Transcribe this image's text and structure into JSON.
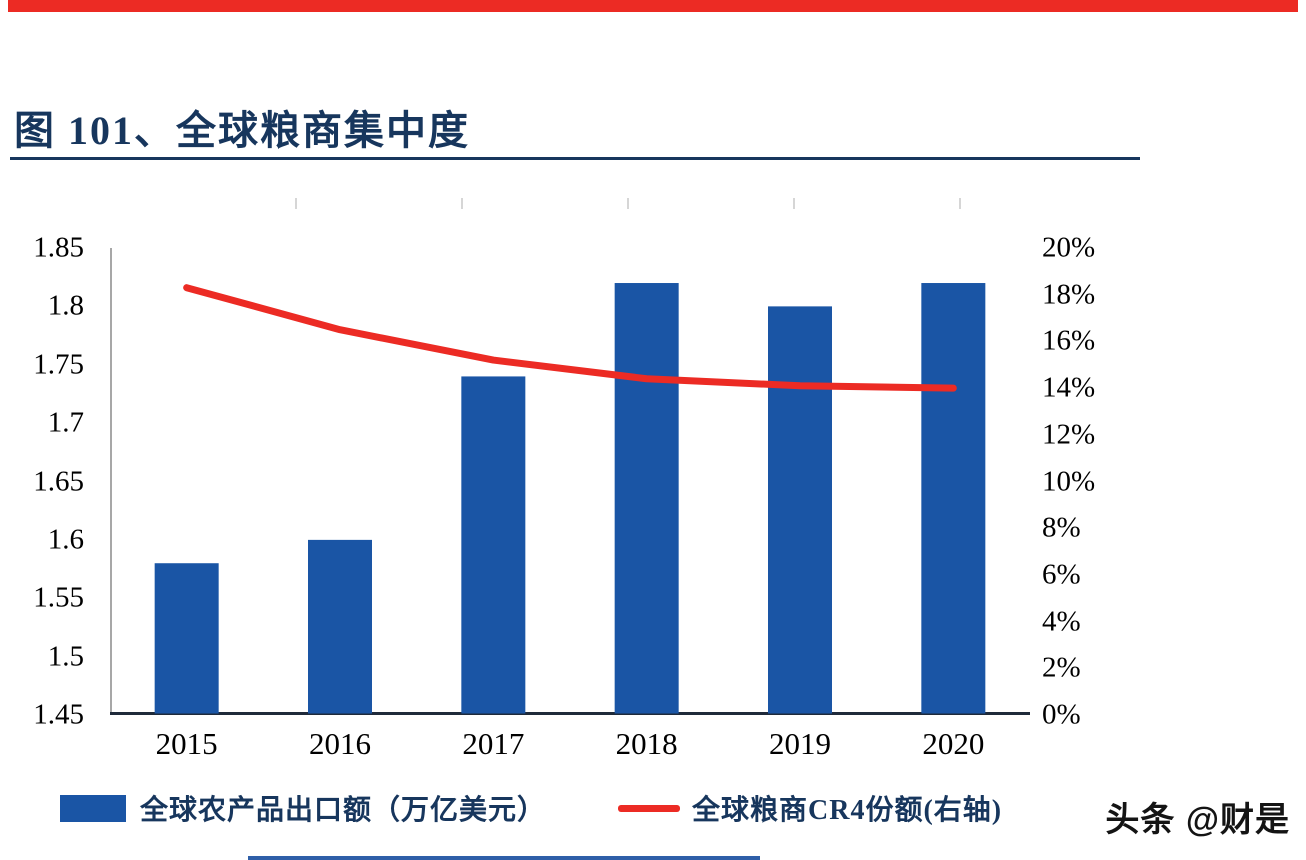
{
  "page": {
    "title": "图 101、全球粮商集中度",
    "watermark": "头条 @财是"
  },
  "colors": {
    "bar": "#1A55A5",
    "line": "#EC2B24",
    "title": "#17365D",
    "axis_spine": "#8a8a8a",
    "baseline": "#1f2a3a"
  },
  "chart_data": {
    "type": "bar+line combo",
    "categories": [
      "2015",
      "2016",
      "2017",
      "2018",
      "2019",
      "2020"
    ],
    "series": [
      {
        "name": "全球农产品出口额（万亿美元）",
        "type": "bar",
        "axis": "left",
        "values": [
          1.58,
          1.6,
          1.74,
          1.82,
          1.8,
          1.82
        ]
      },
      {
        "name": "全球粮商CR4份额(右轴)",
        "type": "line",
        "axis": "right",
        "values": [
          18.3,
          16.5,
          15.2,
          14.4,
          14.1,
          14.0
        ]
      }
    ],
    "left_axis": {
      "min": 1.45,
      "max": 1.85,
      "tick_step": 0.05,
      "ticks": [
        "1.85",
        "1.8",
        "1.75",
        "1.7",
        "1.65",
        "1.6",
        "1.55",
        "1.5",
        "1.45"
      ]
    },
    "right_axis": {
      "min": 0,
      "max": 20,
      "tick_step": 2,
      "unit": "%",
      "ticks": [
        "20%",
        "18%",
        "16%",
        "14%",
        "12%",
        "10%",
        "8%",
        "6%",
        "4%",
        "2%",
        "0%"
      ]
    },
    "legend": [
      {
        "label": "全球农产品出口额（万亿美元）",
        "swatch": "bar"
      },
      {
        "label": "全球粮商CR4份额(右轴)",
        "swatch": "line"
      }
    ],
    "grid": false,
    "legend_position": "bottom"
  }
}
